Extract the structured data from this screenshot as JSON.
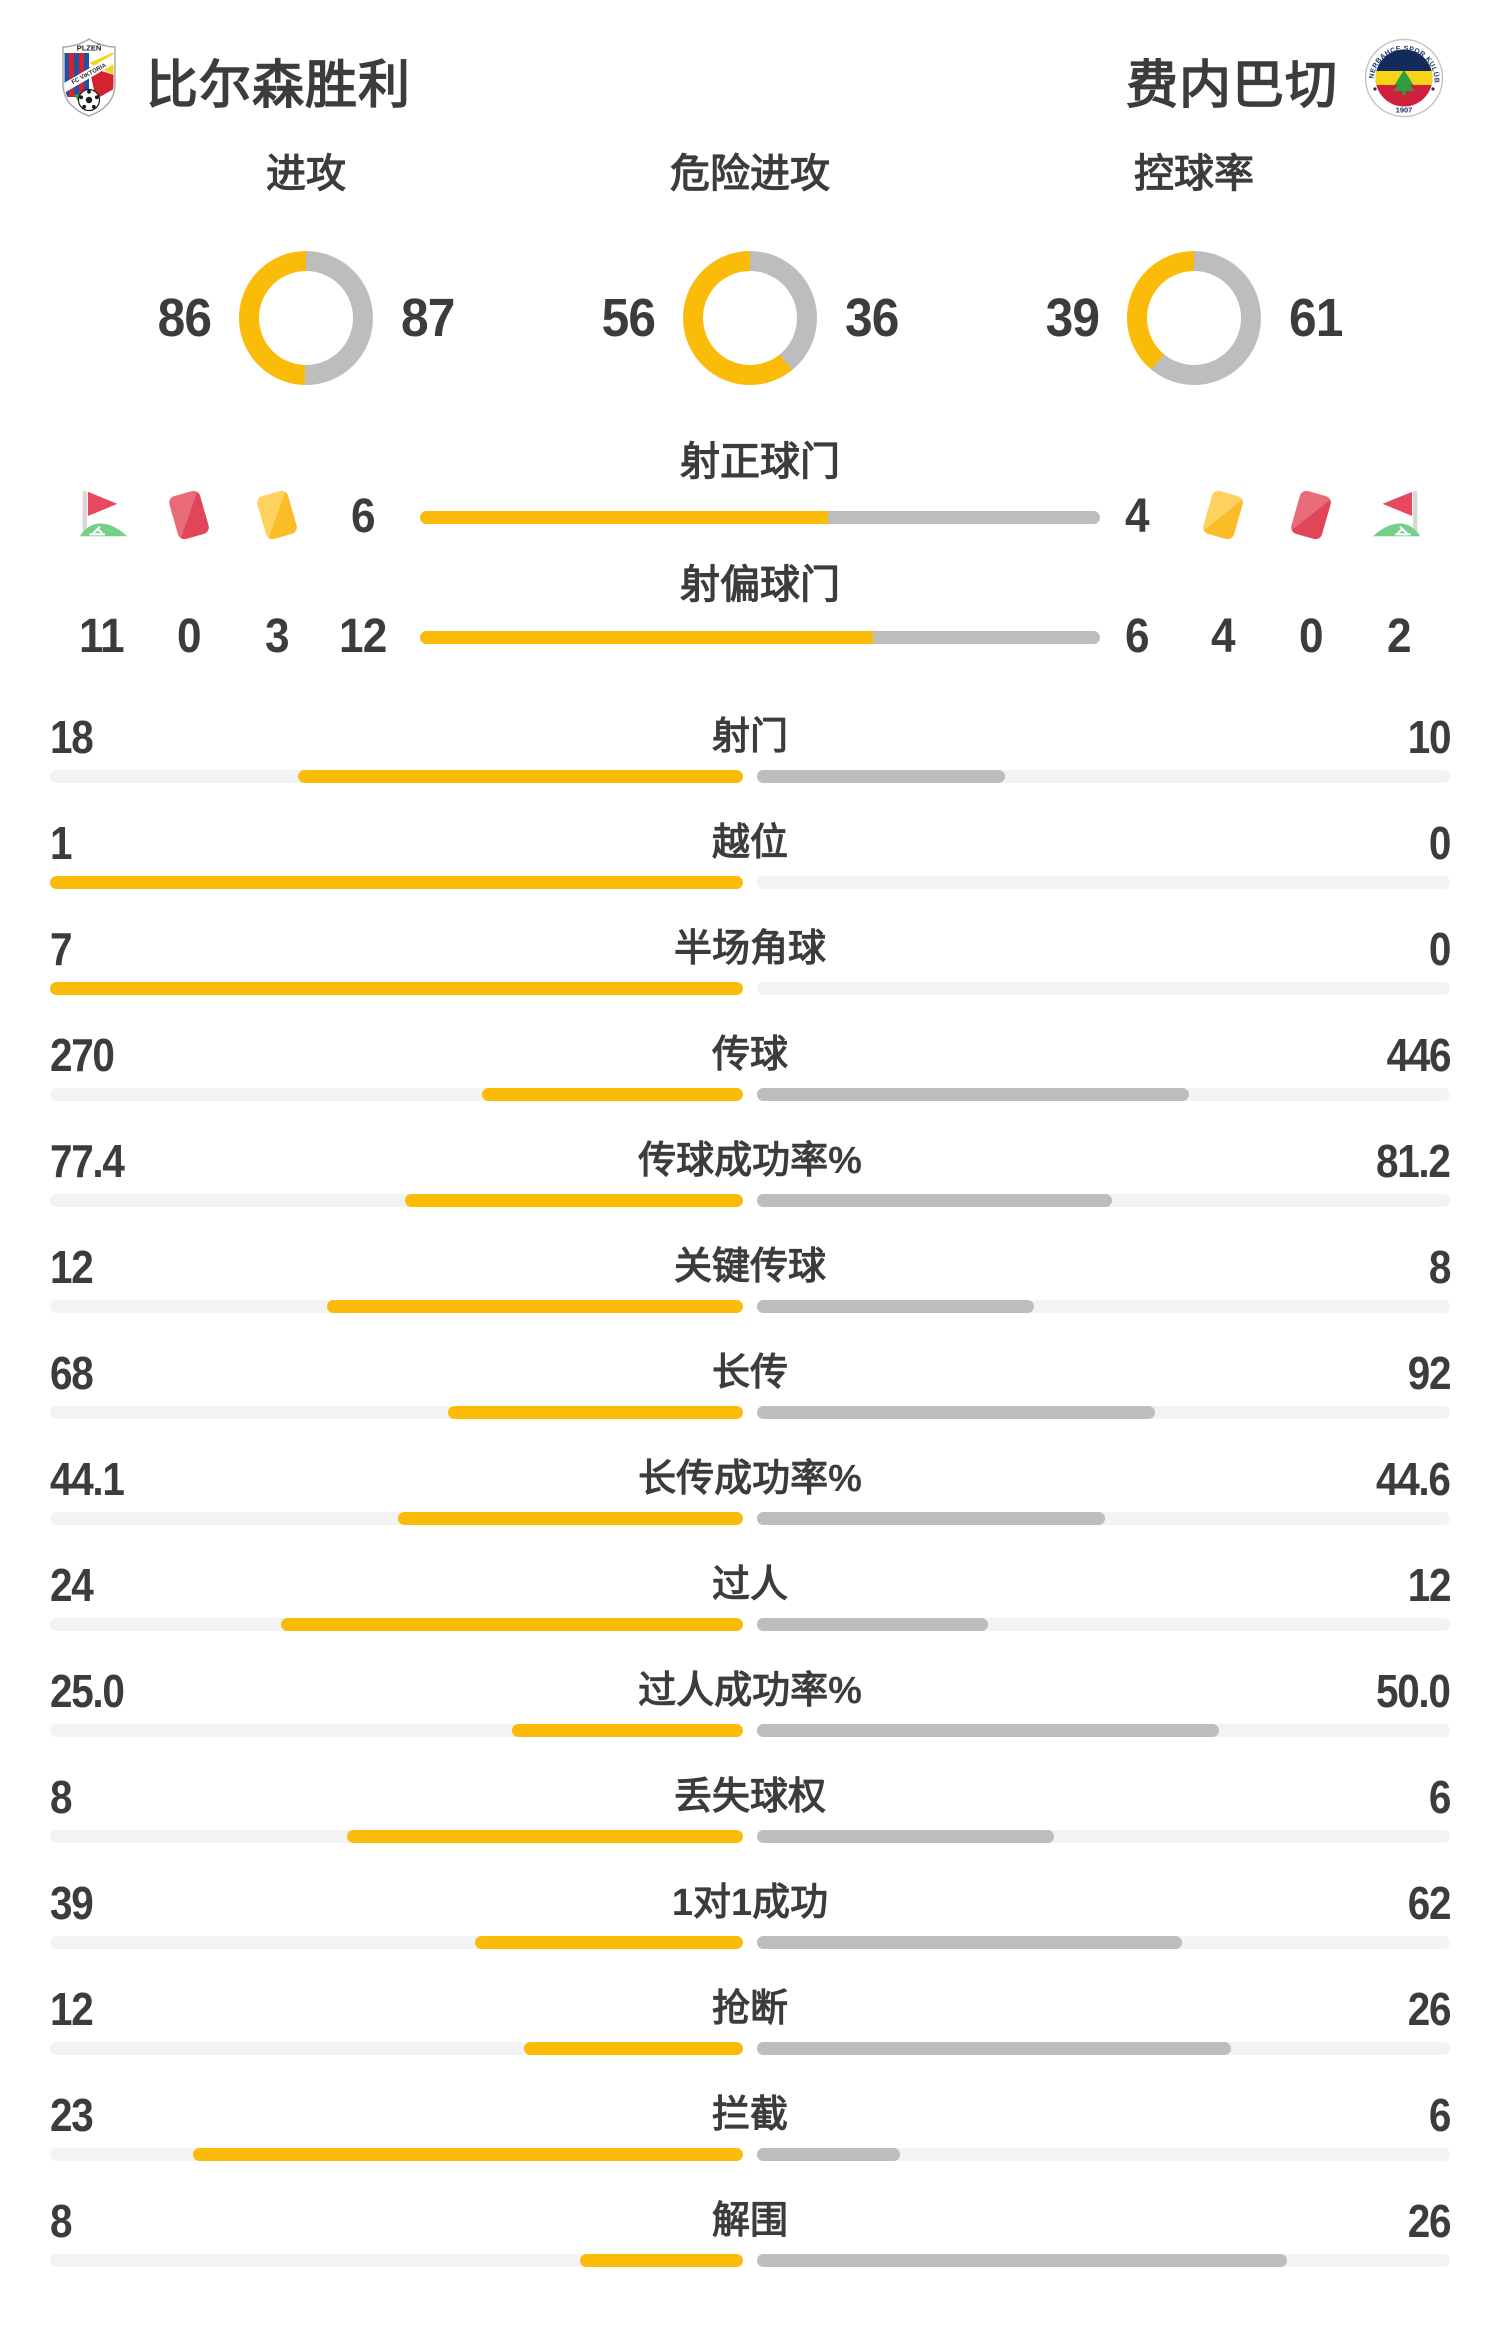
{
  "teams": {
    "home": "比尔森胜利",
    "away": "费内巴切"
  },
  "colors": {
    "home": "#FBBB09",
    "away": "#BDBDBD",
    "track": "#F3F3F3",
    "text": "#3C3C3C",
    "card_red": "#E0455A",
    "card_yellow": "#FBBD27",
    "flag_green": "#74CF88"
  },
  "chart_data": {
    "type": "comparison-dashboard",
    "donuts": [
      {
        "type": "donut",
        "label": "进攻",
        "home": 86,
        "away": 87
      },
      {
        "type": "donut",
        "label": "危险进攻",
        "home": 56,
        "away": 36
      },
      {
        "type": "donut",
        "label": "控球率",
        "home": 39,
        "away": 61
      }
    ],
    "discipline": {
      "home": {
        "corner_kicks": "11",
        "red_cards": "0",
        "yellow_cards": "3"
      },
      "away": {
        "yellow_cards": "4",
        "red_cards": "0",
        "corner_kicks": "2"
      }
    },
    "shot_bars": [
      {
        "type": "bar",
        "label": "射正球门",
        "home": 6,
        "away": 4
      },
      {
        "type": "bar",
        "label": "射偏球门",
        "home": 12,
        "away": 6
      }
    ],
    "stat_rows": [
      {
        "label": "射门",
        "home": "18",
        "away": "10"
      },
      {
        "label": "越位",
        "home": "1",
        "away": "0"
      },
      {
        "label": "半场角球",
        "home": "7",
        "away": "0"
      },
      {
        "label": "传球",
        "home": "270",
        "away": "446"
      },
      {
        "label": "传球成功率%",
        "home": "77.4",
        "away": "81.2"
      },
      {
        "label": "关键传球",
        "home": "12",
        "away": "8"
      },
      {
        "label": "长传",
        "home": "68",
        "away": "92"
      },
      {
        "label": "长传成功率%",
        "home": "44.1",
        "away": "44.6"
      },
      {
        "label": "过人",
        "home": "24",
        "away": "12"
      },
      {
        "label": "过人成功率%",
        "home": "25.0",
        "away": "50.0"
      },
      {
        "label": "丢失球权",
        "home": "8",
        "away": "6"
      },
      {
        "label": "1对1成功",
        "home": "39",
        "away": "62"
      },
      {
        "label": "抢断",
        "home": "12",
        "away": "26"
      },
      {
        "label": "拦截",
        "home": "23",
        "away": "6"
      },
      {
        "label": "解围",
        "home": "8",
        "away": "26"
      }
    ]
  }
}
